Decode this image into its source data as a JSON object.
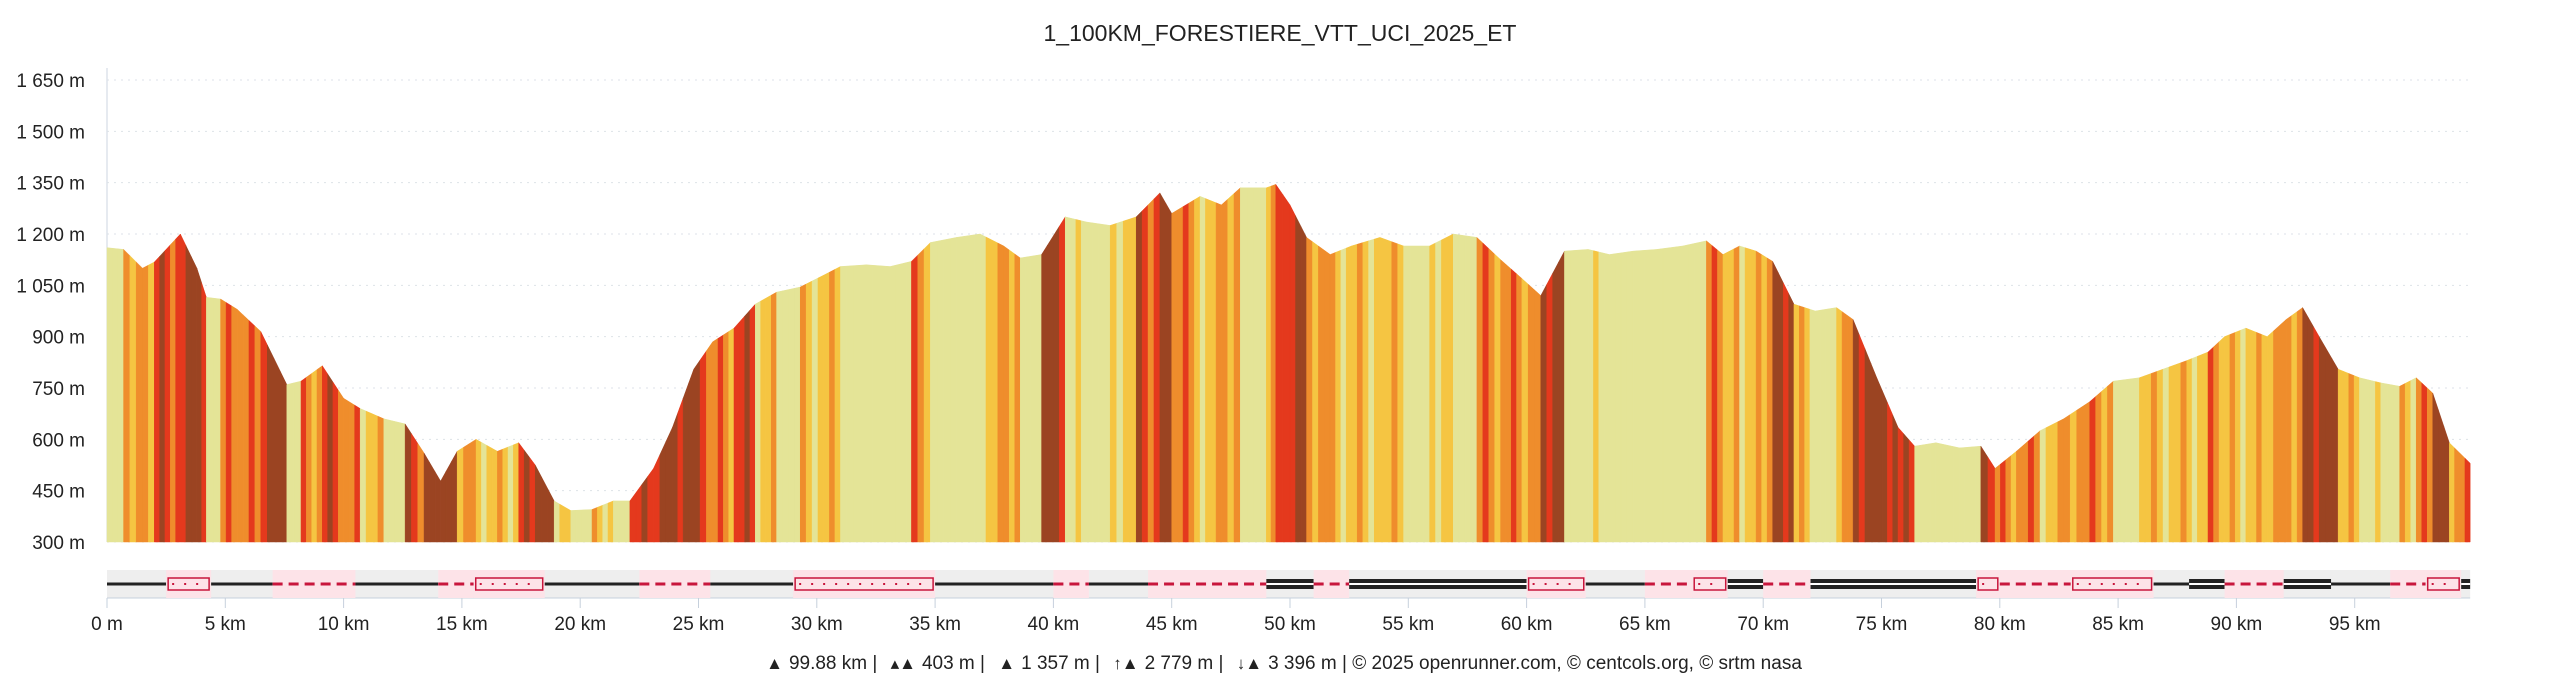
{
  "chart_data": {
    "type": "area",
    "title": "1_100KM_FORESTIERE_VTT_UCI_2025_ET",
    "xlabel": "",
    "ylabel": "",
    "xlim": [
      0,
      99.88
    ],
    "ylim": [
      300,
      1650
    ],
    "grid": true,
    "y_ticks": [
      "1 650 m",
      "1 500 m",
      "1 350 m",
      "1 200 m",
      "1 050 m",
      "900 m",
      "750 m",
      "600 m",
      "450 m",
      "300 m"
    ],
    "y_tick_values": [
      1650,
      1500,
      1350,
      1200,
      1050,
      900,
      750,
      600,
      450,
      300
    ],
    "x_ticks": [
      "0 m",
      "5 km",
      "10 km",
      "15 km",
      "20 km",
      "25 km",
      "30 km",
      "35 km",
      "40 km",
      "45 km",
      "50 km",
      "55 km",
      "60 km",
      "65 km",
      "70 km",
      "75 km",
      "80 km",
      "85 km",
      "90 km",
      "95 km"
    ],
    "x_tick_values": [
      0,
      5,
      10,
      15,
      20,
      25,
      30,
      35,
      40,
      45,
      50,
      55,
      60,
      65,
      70,
      75,
      80,
      85,
      90,
      95
    ],
    "series": [
      {
        "name": "elevation",
        "x": [
          0,
          0.7,
          1.5,
          2.0,
          2.9,
          3.1,
          3.8,
          4.2,
          4.8,
          5.5,
          6.5,
          7.6,
          8.2,
          9.1,
          10.0,
          10.7,
          11.7,
          12.6,
          13.4,
          14.1,
          14.8,
          15.6,
          16.5,
          17.4,
          18.1,
          18.9,
          19.6,
          20.5,
          21.4,
          22.1,
          23.1,
          23.9,
          24.8,
          25.6,
          26.5,
          27.4,
          28.3,
          29.3,
          30.3,
          31.0,
          32.1,
          33.1,
          34.0,
          34.8,
          35.9,
          36.9,
          37.9,
          38.6,
          39.5,
          40.5,
          41.4,
          42.4,
          43.5,
          44.5,
          45.0,
          46.2,
          47.1,
          47.9,
          49.0,
          49.4,
          50.0,
          50.7,
          51.7,
          52.6,
          53.8,
          54.8,
          55.9,
          56.9,
          57.9,
          58.9,
          59.8,
          60.6,
          61.6,
          62.6,
          63.5,
          64.5,
          65.5,
          66.6,
          67.6,
          68.3,
          69.0,
          69.7,
          70.4,
          71.3,
          72.2,
          73.1,
          73.8,
          74.8,
          75.7,
          76.4,
          77.3,
          78.3,
          79.2,
          79.8,
          80.7,
          81.7,
          82.7,
          83.8,
          84.8,
          85.9,
          86.9,
          87.9,
          88.8,
          89.5,
          90.4,
          91.3,
          92.1,
          92.8,
          93.5,
          94.3,
          95.2,
          96.1,
          96.9,
          97.6,
          98.3,
          99.0,
          99.88
        ],
        "y": [
          1160,
          1155,
          1100,
          1118,
          1185,
          1200,
          1100,
          1015,
          1010,
          980,
          915,
          760,
          770,
          815,
          720,
          690,
          660,
          645,
          560,
          478,
          565,
          600,
          565,
          590,
          525,
          420,
          392,
          395,
          420,
          420,
          515,
          635,
          805,
          885,
          925,
          995,
          1030,
          1045,
          1080,
          1105,
          1110,
          1105,
          1120,
          1175,
          1190,
          1200,
          1165,
          1130,
          1140,
          1250,
          1235,
          1225,
          1250,
          1320,
          1260,
          1310,
          1285,
          1335,
          1335,
          1345,
          1285,
          1190,
          1140,
          1165,
          1190,
          1165,
          1165,
          1200,
          1190,
          1125,
          1070,
          1020,
          1150,
          1155,
          1140,
          1150,
          1155,
          1165,
          1180,
          1140,
          1165,
          1150,
          1120,
          995,
          975,
          985,
          950,
          780,
          635,
          580,
          590,
          575,
          580,
          515,
          565,
          625,
          660,
          710,
          770,
          780,
          805,
          830,
          855,
          900,
          925,
          900,
          950,
          985,
          900,
          805,
          780,
          765,
          755,
          780,
          735,
          590,
          530
        ]
      }
    ],
    "slope_colors": [
      "#e4e497",
      "#f5c542",
      "#ef8d2c",
      "#e4391d",
      "#9b4422"
    ],
    "surface_strip": {
      "colors": {
        "road": "#222222",
        "track": "#c8163c",
        "highlight": "#fde3e8",
        "background": "#eeeeee"
      },
      "segments": [
        [
          0,
          2.5,
          "road"
        ],
        [
          2.5,
          4.4,
          "path"
        ],
        [
          4.4,
          7,
          "road"
        ],
        [
          7,
          10.5,
          "track"
        ],
        [
          10.5,
          14,
          "road"
        ],
        [
          14,
          15.5,
          "track"
        ],
        [
          15.5,
          18.5,
          "path"
        ],
        [
          18.5,
          22.5,
          "road"
        ],
        [
          22.5,
          25.5,
          "track"
        ],
        [
          25.5,
          29,
          "road"
        ],
        [
          29,
          35,
          "path"
        ],
        [
          35,
          40,
          "road"
        ],
        [
          40,
          41.5,
          "track"
        ],
        [
          41.5,
          44,
          "road"
        ],
        [
          44,
          49,
          "track"
        ],
        [
          49,
          51,
          "double"
        ],
        [
          51,
          52.5,
          "track"
        ],
        [
          52.5,
          60,
          "double"
        ],
        [
          60,
          62.5,
          "path"
        ],
        [
          62.5,
          65,
          "road"
        ],
        [
          65,
          67,
          "track"
        ],
        [
          67,
          68.5,
          "path"
        ],
        [
          68.5,
          70,
          "double"
        ],
        [
          70,
          72,
          "track"
        ],
        [
          72,
          79,
          "double"
        ],
        [
          79,
          80,
          "path"
        ],
        [
          80,
          83,
          "track"
        ],
        [
          83,
          86.5,
          "path"
        ],
        [
          86.5,
          88,
          "road"
        ],
        [
          88,
          89.5,
          "double"
        ],
        [
          89.5,
          92,
          "track"
        ],
        [
          92,
          94,
          "double"
        ],
        [
          94,
          96.5,
          "road"
        ],
        [
          96.5,
          98,
          "track"
        ],
        [
          98,
          99.5,
          "path"
        ],
        [
          99.5,
          99.88,
          "double"
        ]
      ]
    }
  },
  "footer": {
    "distance_icon": "distance-icon",
    "distance": "99.88 km |",
    "min_alt": "403 m |",
    "max_alt": "1 357 m |",
    "ascent": "2 779 m |",
    "descent": "3 396 m |",
    "credits": "© 2025 openrunner.com, © centcols.org, © srtm nasa"
  }
}
